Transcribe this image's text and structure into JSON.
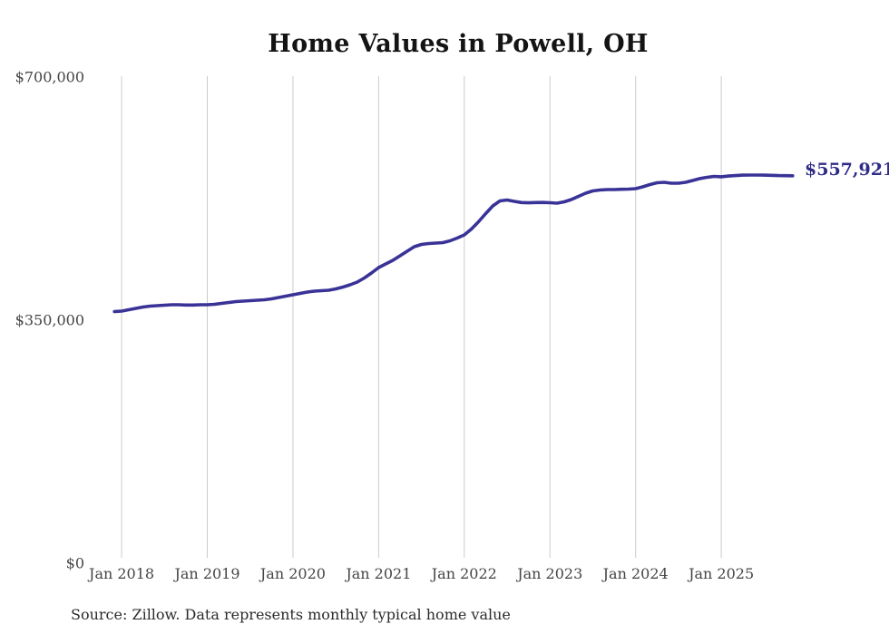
{
  "title": "Home Values in Powell, OH",
  "source_note": "Source: Zillow. Data represents monthly typical home value",
  "end_label": "$557,921",
  "colors": {
    "line": "#3a3397",
    "end_label": "#2f2c88",
    "gridline": "#cbcbcb",
    "axis_text": "#454545",
    "title_text": "#141414",
    "source_text": "#2b2b2b",
    "background": "#ffffff"
  },
  "chart_data": {
    "type": "line",
    "title": "Home Values in Powell, OH",
    "xlabel": "",
    "ylabel": "",
    "ylim": [
      0,
      700000
    ],
    "y_ticks": [
      0,
      350000,
      700000
    ],
    "y_tick_labels": [
      "$0",
      "$350,000",
      "$700,000"
    ],
    "x_tick_labels": [
      "Jan 2018",
      "Jan 2019",
      "Jan 2020",
      "Jan 2021",
      "Jan 2022",
      "Jan 2023",
      "Jan 2024",
      "Jan 2025"
    ],
    "grid": "vertical-only",
    "legend": "none",
    "end_annotation": "$557,921",
    "start_month": "2017-12",
    "frequency": "monthly",
    "series": [
      {
        "name": "Typical home value",
        "values": [
          362400,
          363100,
          365000,
          367000,
          368900,
          370300,
          370900,
          371600,
          372200,
          372200,
          371800,
          371800,
          372200,
          372200,
          372900,
          374200,
          375500,
          376800,
          377400,
          378100,
          378700,
          379400,
          380700,
          382600,
          384600,
          386600,
          388500,
          390500,
          391800,
          392400,
          393100,
          395100,
          397700,
          400900,
          404900,
          410700,
          417900,
          425800,
          431000,
          436200,
          442700,
          449300,
          455800,
          459100,
          460400,
          461000,
          461700,
          464300,
          468200,
          472800,
          481300,
          491700,
          503500,
          514600,
          521800,
          523100,
          521100,
          519400,
          519000,
          519400,
          519500,
          519100,
          518500,
          520400,
          523700,
          528300,
          532800,
          536100,
          537400,
          538100,
          538100,
          538500,
          538700,
          539400,
          542000,
          545300,
          547900,
          548500,
          547200,
          547200,
          548500,
          551100,
          553800,
          555700,
          557000,
          556500,
          557500,
          558200,
          558800,
          559000,
          559000,
          558800,
          558500,
          558200,
          558000,
          557921
        ]
      }
    ]
  }
}
